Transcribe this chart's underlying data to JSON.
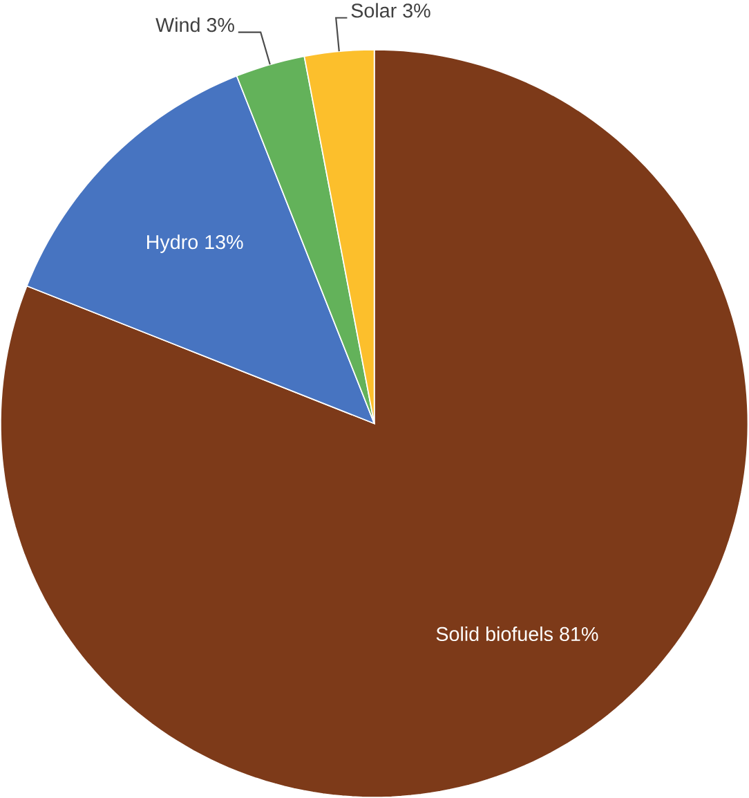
{
  "chart_data": {
    "type": "pie",
    "categories": [
      "Solid biofuels",
      "Hydro",
      "Wind",
      "Solar"
    ],
    "values": [
      81,
      13,
      3,
      3
    ],
    "value_labels": [
      "81%",
      "13%",
      "3%",
      "3%"
    ],
    "colors": [
      "#7d3a19",
      "#4774c1",
      "#63b25a",
      "#fcbf2c"
    ]
  }
}
